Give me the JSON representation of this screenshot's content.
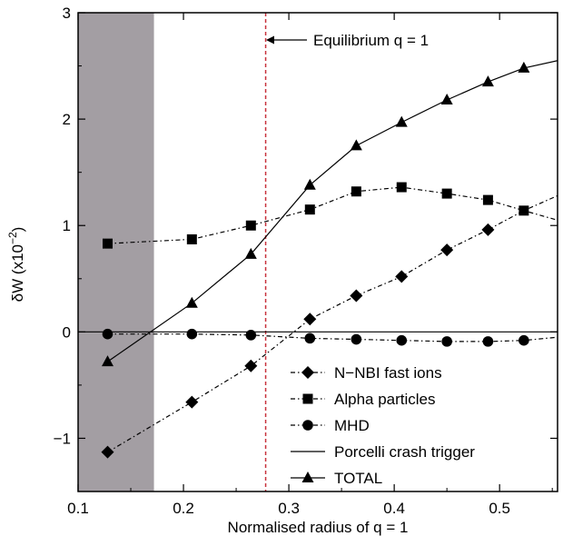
{
  "chart_data": {
    "type": "line",
    "xlabel": "Normalised radius of q = 1",
    "ylabel": "δW (x10",
    "ylabel_sup": "−2",
    "ylabel_close": ")",
    "xlim": [
      0.1,
      0.555
    ],
    "ylim": [
      -1.5,
      3.0
    ],
    "xticks": [
      0.1,
      0.2,
      0.3,
      0.4,
      0.5
    ],
    "xtick_labels": [
      "0.1",
      "0.2",
      "0.3",
      "0.4",
      "0.5"
    ],
    "yticks": [
      -1,
      0,
      1,
      2,
      3
    ],
    "ytick_labels": [
      "−1",
      "0",
      "1",
      "2",
      "3"
    ],
    "grid": false,
    "legend_position": "bottom-right",
    "shaded_region": {
      "x_from": 0.1,
      "x_to": 0.172,
      "color": "#a39ea3"
    },
    "reference_line": {
      "y": 0
    },
    "annotation": {
      "text": "Equilibrium q = 1",
      "x": 0.278,
      "color": "#c8323c"
    },
    "series": [
      {
        "name": "N−NBI fast ions",
        "marker": "diamond",
        "line": "dashdot",
        "x": [
          0.128,
          0.208,
          0.264,
          0.32,
          0.364,
          0.407,
          0.45,
          0.489,
          0.523,
          0.555
        ],
        "y": [
          -1.13,
          -0.66,
          -0.32,
          0.12,
          0.34,
          0.52,
          0.77,
          0.96,
          1.14,
          1.28
        ],
        "markers_shown": [
          true,
          true,
          true,
          true,
          true,
          true,
          true,
          true,
          false,
          false
        ]
      },
      {
        "name": "Alpha particles",
        "marker": "square",
        "line": "dashdot",
        "x": [
          0.128,
          0.208,
          0.264,
          0.32,
          0.364,
          0.407,
          0.45,
          0.489,
          0.523,
          0.555
        ],
        "y": [
          0.83,
          0.87,
          1.0,
          1.15,
          1.32,
          1.36,
          1.3,
          1.24,
          1.14,
          1.05
        ],
        "markers_shown": [
          true,
          true,
          true,
          true,
          true,
          true,
          true,
          true,
          true,
          false
        ]
      },
      {
        "name": "MHD",
        "marker": "circle",
        "line": "dashdot",
        "x": [
          0.128,
          0.208,
          0.264,
          0.32,
          0.364,
          0.407,
          0.45,
          0.489,
          0.523,
          0.555
        ],
        "y": [
          -0.02,
          -0.02,
          -0.03,
          -0.06,
          -0.07,
          -0.08,
          -0.09,
          -0.09,
          -0.08,
          -0.05
        ],
        "markers_shown": [
          true,
          true,
          true,
          true,
          true,
          true,
          true,
          true,
          true,
          false
        ]
      },
      {
        "name": "Porcelli crash trigger",
        "marker": "none",
        "line": "solid",
        "x": [
          0.1,
          0.555
        ],
        "y": [
          0.0,
          0.0
        ],
        "markers_shown": [
          false,
          false
        ]
      },
      {
        "name": "TOTAL",
        "marker": "triangle",
        "line": "solid",
        "x": [
          0.128,
          0.208,
          0.264,
          0.32,
          0.364,
          0.407,
          0.45,
          0.489,
          0.523,
          0.555
        ],
        "y": [
          -0.28,
          0.27,
          0.73,
          1.38,
          1.75,
          1.97,
          2.18,
          2.35,
          2.48,
          2.55
        ],
        "markers_shown": [
          true,
          true,
          true,
          true,
          true,
          true,
          true,
          true,
          true,
          false
        ]
      }
    ]
  }
}
